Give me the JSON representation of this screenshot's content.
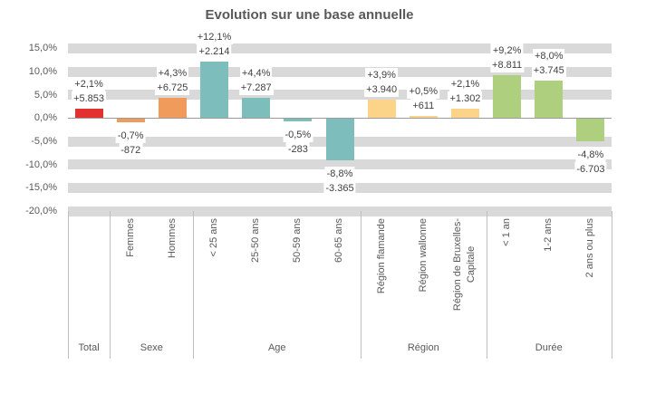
{
  "chart_data": {
    "type": "bar",
    "title": "Evolution sur une base annuelle",
    "xlabel": "",
    "ylabel": "",
    "ylim": [
      -20,
      15
    ],
    "grid": "horizontal-bands",
    "legend": "none",
    "colors": {
      "Total": "#e2312e",
      "Sexe": "#f09a5c",
      "Age": "#7dbebd",
      "Région": "#fbd48a",
      "Durée": "#aed07e"
    },
    "y_ticks": [
      {
        "label": "15,0%",
        "value": 15
      },
      {
        "label": "10,0%",
        "value": 10
      },
      {
        "label": "5,0%",
        "value": 5
      },
      {
        "label": "0,0%",
        "value": 0
      },
      {
        "label": "-5,0%",
        "value": -5
      },
      {
        "label": "-10,0%",
        "value": -10
      },
      {
        "label": "-15,0%",
        "value": -15
      },
      {
        "label": "-20,0%",
        "value": -20
      }
    ],
    "groups": [
      {
        "label": "Total",
        "count": 1
      },
      {
        "label": "Sexe",
        "count": 2
      },
      {
        "label": "Age",
        "count": 4
      },
      {
        "label": "Région",
        "count": 3
      },
      {
        "label": "Durée",
        "count": 3
      }
    ],
    "bars": [
      {
        "category": "Total",
        "axis_label": "",
        "group": "Total",
        "pct": 2.1,
        "value": 5853,
        "pct_label": "+2,1%",
        "value_label": "+5.853"
      },
      {
        "category": "Femmes",
        "axis_label": "Femmes",
        "group": "Sexe",
        "pct": -0.7,
        "value": -872,
        "pct_label": "-0,7%",
        "value_label": "-872"
      },
      {
        "category": "Hommes",
        "axis_label": "Hommes",
        "group": "Sexe",
        "pct": 4.3,
        "value": 6725,
        "pct_label": "+4,3%",
        "value_label": "+6.725"
      },
      {
        "category": "< 25 ans",
        "axis_label": "< 25 ans",
        "group": "Age",
        "pct": 12.1,
        "value": 2214,
        "pct_label": "+12,1%",
        "value_label": "+2.214"
      },
      {
        "category": "25-50 ans",
        "axis_label": "25-50 ans",
        "group": "Age",
        "pct": 4.4,
        "value": 7287,
        "pct_label": "+4,4%",
        "value_label": "+7.287"
      },
      {
        "category": "50-59 ans",
        "axis_label": "50-59 ans",
        "group": "Age",
        "pct": -0.5,
        "value": -283,
        "pct_label": "-0,5%",
        "value_label": "-283"
      },
      {
        "category": "60-65 ans",
        "axis_label": "60-65 ans",
        "group": "Age",
        "pct": -8.8,
        "value": -3365,
        "pct_label": "-8,8%",
        "value_label": "-3.365"
      },
      {
        "category": "Région flamande",
        "axis_label": "Région flamande",
        "group": "Région",
        "pct": 3.9,
        "value": 3940,
        "pct_label": "+3,9%",
        "value_label": "+3.940"
      },
      {
        "category": "Région wallonne",
        "axis_label": "Région wallonne",
        "group": "Région",
        "pct": 0.5,
        "value": 611,
        "pct_label": "+0,5%",
        "value_label": "+611"
      },
      {
        "category": "Région de Bruxelles-Capitale",
        "axis_label": "Région de Bruxelles-\nCapitale",
        "group": "Région",
        "pct": 2.1,
        "value": 1302,
        "pct_label": "+2,1%",
        "value_label": "+1.302"
      },
      {
        "category": "< 1 an",
        "axis_label": "< 1 an",
        "group": "Durée",
        "pct": 9.2,
        "value": 8811,
        "pct_label": "+9,2%",
        "value_label": "+8.811"
      },
      {
        "category": "1-2 ans",
        "axis_label": "1-2 ans",
        "group": "Durée",
        "pct": 8.0,
        "value": 3745,
        "pct_label": "+8,0%",
        "value_label": "+3.745"
      },
      {
        "category": "2 ans ou plus",
        "axis_label": "2 ans ou plus",
        "group": "Durée",
        "pct": -4.8,
        "value": -6703,
        "pct_label": "-4,8%",
        "value_label": "-6.703"
      }
    ]
  }
}
